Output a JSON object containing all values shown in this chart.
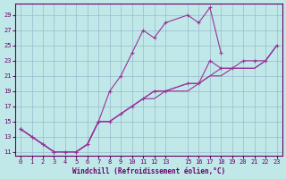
{
  "xlabel": "Windchill (Refroidissement éolien,°C)",
  "bg_color": "#c0e8e8",
  "grid_color": "#99bbcc",
  "line_color": "#993399",
  "xlim": [
    -0.5,
    23.5
  ],
  "ylim": [
    10.5,
    30.5
  ],
  "xticks": [
    0,
    1,
    2,
    3,
    4,
    5,
    6,
    7,
    8,
    9,
    10,
    11,
    12,
    13,
    15,
    16,
    17,
    18,
    19,
    20,
    21,
    22,
    23
  ],
  "yticks": [
    11,
    13,
    15,
    17,
    19,
    21,
    23,
    25,
    27,
    29
  ],
  "series1_x": [
    0,
    1,
    2,
    3,
    4,
    5,
    6,
    7,
    8,
    9,
    10,
    11,
    12,
    13,
    15,
    16,
    17,
    18
  ],
  "series1_y": [
    14,
    13,
    12,
    11,
    11,
    11,
    12,
    15,
    19,
    21,
    24,
    27,
    26,
    28,
    29,
    28,
    30,
    24
  ],
  "series2_x": [
    0,
    1,
    2,
    3,
    4,
    5,
    6,
    7,
    8,
    9,
    10,
    11,
    12,
    13,
    15,
    16,
    17,
    18,
    19,
    20,
    21,
    22,
    23
  ],
  "series2_y": [
    14,
    13,
    12,
    11,
    11,
    11,
    12,
    15,
    15,
    16,
    17,
    18,
    19,
    19,
    20,
    20,
    23,
    22,
    22,
    23,
    23,
    23,
    25
  ],
  "series3_x": [
    0,
    2,
    3,
    4,
    5,
    6,
    7,
    8,
    9,
    10,
    11,
    12,
    13,
    15,
    16,
    17,
    18,
    19,
    20,
    21,
    22,
    23
  ],
  "series3_y": [
    14,
    12,
    11,
    11,
    11,
    12,
    15,
    15,
    16,
    17,
    18,
    19,
    19,
    20,
    20,
    21,
    21,
    22,
    22,
    22,
    23,
    25
  ],
  "series4_x": [
    0,
    2,
    3,
    4,
    5,
    6,
    7,
    8,
    9,
    10,
    11,
    12,
    13,
    15,
    16,
    17,
    18,
    19,
    20,
    21,
    22,
    23
  ],
  "series4_y": [
    14,
    12,
    11,
    11,
    11,
    12,
    15,
    15,
    16,
    17,
    18,
    18,
    19,
    19,
    20,
    21,
    22,
    22,
    22,
    22,
    23,
    25
  ]
}
